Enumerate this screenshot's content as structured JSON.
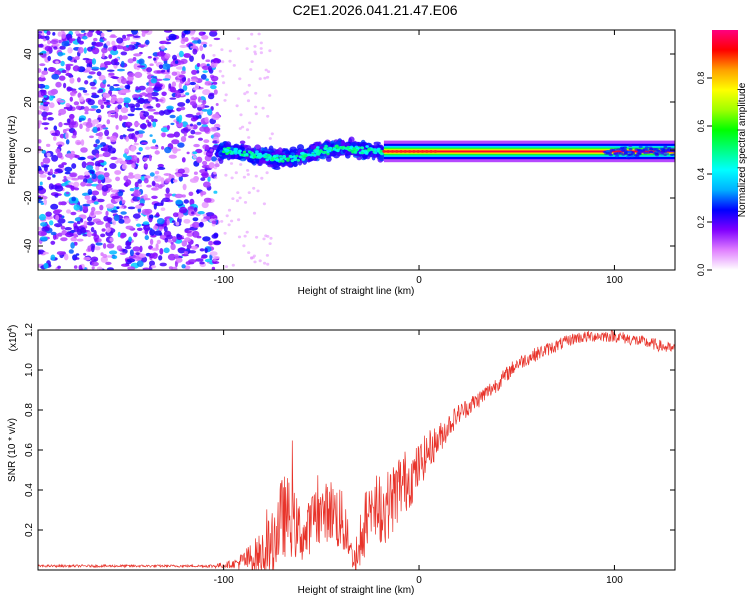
{
  "title": "C2E1.2026.041.21.47.E06",
  "chart_data": [
    {
      "type": "heatmap",
      "xlabel": "Height of straight line (km)",
      "ylabel": "Frequency (Hz)",
      "xlim": [
        -195,
        131
      ],
      "ylim": [
        -50,
        50
      ],
      "xticks": [
        -100,
        0,
        100
      ],
      "xtick_labels": [
        "-100",
        "0",
        "100"
      ],
      "yticks": [
        -40,
        -20,
        0,
        20,
        40
      ],
      "ytick_labels": [
        "-40",
        "-20",
        "0",
        "20",
        "40"
      ],
      "colorbar": {
        "label": "Normalized spectral amplitude",
        "range": [
          0,
          1
        ],
        "ticks": [
          0.0,
          0.2,
          0.4,
          0.6,
          0.8
        ],
        "tick_labels": [
          "0.0",
          "0.2",
          "0.4",
          "0.6",
          "0.8"
        ],
        "colors": [
          "#ffffff",
          "#e080ff",
          "#8000ff",
          "#0000ff",
          "#00b0ff",
          "#00ffff",
          "#00ff80",
          "#00ff00",
          "#a0ff00",
          "#ffff00",
          "#ffa000",
          "#ff0000",
          "#ff0080"
        ]
      },
      "regions": [
        {
          "name": "diffuse noise",
          "x_range": [
            -195,
            -103
          ],
          "freq_range": [
            -50,
            50
          ],
          "amplitude": 0.25
        },
        {
          "name": "scattered signal",
          "x_range": [
            -103,
            -18
          ],
          "freq_range": [
            -10,
            6
          ],
          "amplitude": 0.45
        },
        {
          "name": "narrow line",
          "x_range": [
            -18,
            131
          ],
          "freq_range": [
            -2,
            1
          ],
          "amplitude": 0.95
        }
      ]
    },
    {
      "type": "line",
      "xlabel": "Height of straight line (km)",
      "ylabel": "SNR (10 * v/v)",
      "scale_label": "(x10",
      "scale_exp": "4",
      "scale_close": ")",
      "xlim": [
        -195,
        131
      ],
      "ylim": [
        0,
        1.2
      ],
      "xticks": [
        -100,
        0,
        100
      ],
      "xtick_labels": [
        "-100",
        "0",
        "100"
      ],
      "yticks": [
        0.2,
        0.4,
        0.6,
        0.8,
        1.0,
        1.2
      ],
      "ytick_labels": [
        "0.2",
        "0.4",
        "0.6",
        "0.8",
        "1.0",
        "1.2"
      ],
      "series": [
        {
          "name": "SNR",
          "color": "#e8332a",
          "envelope_x": [
            -195,
            -120,
            -105,
            -95,
            -88,
            -80,
            -75,
            -72,
            -68,
            -62,
            -58,
            -55,
            -50,
            -45,
            -40,
            -36,
            -33,
            -30,
            -26,
            -22,
            -18,
            -14,
            -10,
            -6,
            -2,
            0,
            2,
            5,
            10,
            15,
            20,
            30,
            40,
            50,
            60,
            70,
            80,
            90,
            100,
            110,
            120,
            131
          ],
          "envelope_y": [
            0.02,
            0.02,
            0.02,
            0.03,
            0.05,
            0.08,
            0.12,
            0.22,
            0.28,
            0.2,
            0.16,
            0.25,
            0.28,
            0.3,
            0.25,
            0.12,
            0.05,
            0.08,
            0.25,
            0.32,
            0.3,
            0.35,
            0.42,
            0.45,
            0.48,
            0.52,
            0.55,
            0.6,
            0.65,
            0.72,
            0.78,
            0.85,
            0.93,
            1.03,
            1.08,
            1.12,
            1.16,
            1.17,
            1.17,
            1.15,
            1.13,
            1.1
          ],
          "noise_x": [
            -195,
            -110,
            -95,
            -80,
            -70,
            -60,
            -50,
            -40,
            -36,
            -30,
            -20,
            -10,
            0,
            10,
            20,
            40,
            60,
            80,
            100,
            131
          ],
          "noise_y": [
            0.006,
            0.006,
            0.02,
            0.12,
            0.22,
            0.14,
            0.14,
            0.18,
            0.05,
            0.1,
            0.18,
            0.18,
            0.12,
            0.08,
            0.05,
            0.04,
            0.035,
            0.03,
            0.03,
            0.03
          ]
        }
      ]
    }
  ]
}
